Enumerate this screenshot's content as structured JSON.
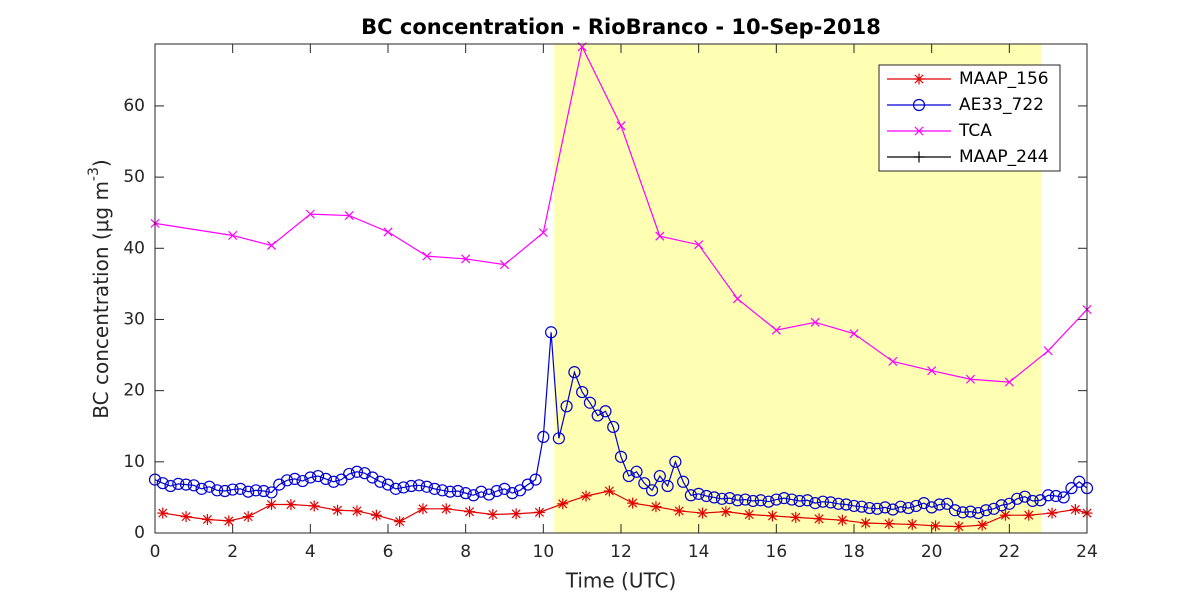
{
  "chart_data": {
    "type": "line",
    "title": "BC concentration  - RioBranco - 10-Sep-2018",
    "xlabel": "Time (UTC)",
    "ylabel": "BC concentration (μg m",
    "ylabel_sup": "-3",
    "ylabel_end": ")",
    "xlim": [
      0,
      24
    ],
    "ylim": [
      0,
      68.7
    ],
    "xticks": [
      0,
      2,
      4,
      6,
      8,
      10,
      12,
      14,
      16,
      18,
      20,
      22,
      24
    ],
    "yticks": [
      0,
      10,
      20,
      30,
      40,
      50,
      60
    ],
    "shade": [
      10.28,
      22.84
    ],
    "shade_color": "#ffffb3",
    "legend": "upper right",
    "series": [
      {
        "name": "MAAP_156",
        "color": "#e00000",
        "marker": "star",
        "x": [
          0.2,
          0.8,
          1.35,
          1.9,
          2.4,
          3.0,
          3.5,
          4.1,
          4.7,
          5.2,
          5.7,
          6.3,
          6.9,
          7.5,
          8.1,
          8.7,
          9.3,
          9.9,
          10.5,
          11.1,
          11.7,
          12.3,
          12.9,
          13.5,
          14.1,
          14.7,
          15.3,
          15.9,
          16.5,
          17.1,
          17.7,
          18.3,
          18.9,
          19.5,
          20.1,
          20.7,
          21.3,
          21.9,
          22.5,
          23.1,
          23.7,
          24
        ],
        "values": [
          2.8,
          2.3,
          1.9,
          1.7,
          2.3,
          4.0,
          4.0,
          3.8,
          3.2,
          3.1,
          2.5,
          1.6,
          3.4,
          3.4,
          3.0,
          2.6,
          2.7,
          2.9,
          4.1,
          5.2,
          5.9,
          4.2,
          3.7,
          3.1,
          2.8,
          3.0,
          2.6,
          2.4,
          2.2,
          2.0,
          1.8,
          1.4,
          1.3,
          1.2,
          1.0,
          0.9,
          1.1,
          2.5,
          2.5,
          2.8,
          3.3,
          2.8
        ]
      },
      {
        "name": "AE33_722",
        "color": "#0000d0",
        "marker": "circle",
        "x": [
          0,
          0.2,
          0.4,
          0.6,
          0.8,
          1,
          1.2,
          1.4,
          1.6,
          1.8,
          2,
          2.2,
          2.4,
          2.6,
          2.8,
          3,
          3.2,
          3.4,
          3.6,
          3.8,
          4,
          4.2,
          4.4,
          4.6,
          4.8,
          5,
          5.2,
          5.4,
          5.6,
          5.8,
          6,
          6.2,
          6.4,
          6.6,
          6.8,
          7,
          7.2,
          7.4,
          7.6,
          7.8,
          8,
          8.2,
          8.4,
          8.6,
          8.8,
          9,
          9.2,
          9.4,
          9.6,
          9.8,
          10,
          10.2,
          10.4,
          10.6,
          10.8,
          11,
          11.2,
          11.4,
          11.6,
          11.8,
          12,
          12.2,
          12.4,
          12.6,
          12.8,
          13,
          13.2,
          13.4,
          13.6,
          13.8,
          14,
          14.2,
          14.4,
          14.6,
          14.8,
          15,
          15.2,
          15.4,
          15.6,
          15.8,
          16,
          16.2,
          16.4,
          16.6,
          16.8,
          17,
          17.2,
          17.4,
          17.6,
          17.8,
          18,
          18.2,
          18.4,
          18.6,
          18.8,
          19,
          19.2,
          19.4,
          19.6,
          19.8,
          20,
          20.2,
          20.4,
          20.6,
          20.8,
          21,
          21.2,
          21.4,
          21.6,
          21.8,
          22,
          22.2,
          22.4,
          22.6,
          22.8,
          23,
          23.2,
          23.4,
          23.6,
          23.8,
          24
        ],
        "values": [
          7.5,
          7.0,
          6.6,
          6.9,
          6.8,
          6.7,
          6.2,
          6.5,
          6.0,
          5.9,
          6.1,
          6.2,
          5.8,
          6.0,
          5.9,
          5.7,
          6.8,
          7.4,
          7.6,
          7.3,
          7.8,
          8.0,
          7.6,
          7.2,
          7.5,
          8.3,
          8.6,
          8.4,
          7.8,
          7.2,
          6.8,
          6.2,
          6.4,
          6.6,
          6.7,
          6.5,
          6.2,
          6.0,
          5.8,
          5.9,
          5.6,
          5.3,
          5.8,
          5.4,
          5.9,
          6.2,
          5.6,
          6.0,
          6.8,
          7.5,
          13.5,
          28.2,
          13.3,
          17.8,
          22.6,
          19.8,
          18.3,
          16.5,
          17.1,
          14.9,
          10.7,
          8.0,
          8.6,
          7.0,
          6.0,
          8.0,
          6.6,
          10.0,
          7.2,
          5.3,
          5.5,
          5.2,
          5.0,
          4.8,
          4.9,
          4.6,
          4.7,
          4.5,
          4.6,
          4.4,
          4.7,
          4.9,
          4.7,
          4.5,
          4.6,
          4.2,
          4.4,
          4.3,
          4.1,
          4.0,
          3.8,
          3.7,
          3.5,
          3.4,
          3.6,
          3.3,
          3.7,
          3.5,
          3.8,
          4.2,
          3.6,
          4.0,
          4.1,
          3.2,
          2.9,
          3.0,
          2.8,
          3.2,
          3.4,
          3.9,
          4.1,
          4.8,
          5.1,
          4.5,
          4.6,
          5.3,
          5.2,
          5.0,
          6.3,
          7.2,
          6.3
        ]
      },
      {
        "name": "TCA",
        "color": "#ff00ff",
        "marker": "x",
        "x": [
          0,
          2,
          3,
          4,
          5,
          6,
          7,
          8,
          9,
          10,
          11,
          12,
          13,
          14,
          15,
          16,
          17,
          18,
          19,
          20,
          21,
          22,
          23,
          24
        ],
        "values": [
          43.5,
          41.8,
          40.4,
          44.8,
          44.6,
          42.3,
          38.9,
          38.5,
          37.7,
          42.2,
          68.3,
          57.2,
          41.7,
          40.5,
          32.9,
          28.5,
          29.6,
          28.0,
          24.1,
          22.8,
          21.6,
          21.2,
          25.6,
          31.4
        ]
      },
      {
        "name": "MAAP_244",
        "color": "#000000",
        "marker": "plus",
        "x": [],
        "values": []
      }
    ]
  }
}
